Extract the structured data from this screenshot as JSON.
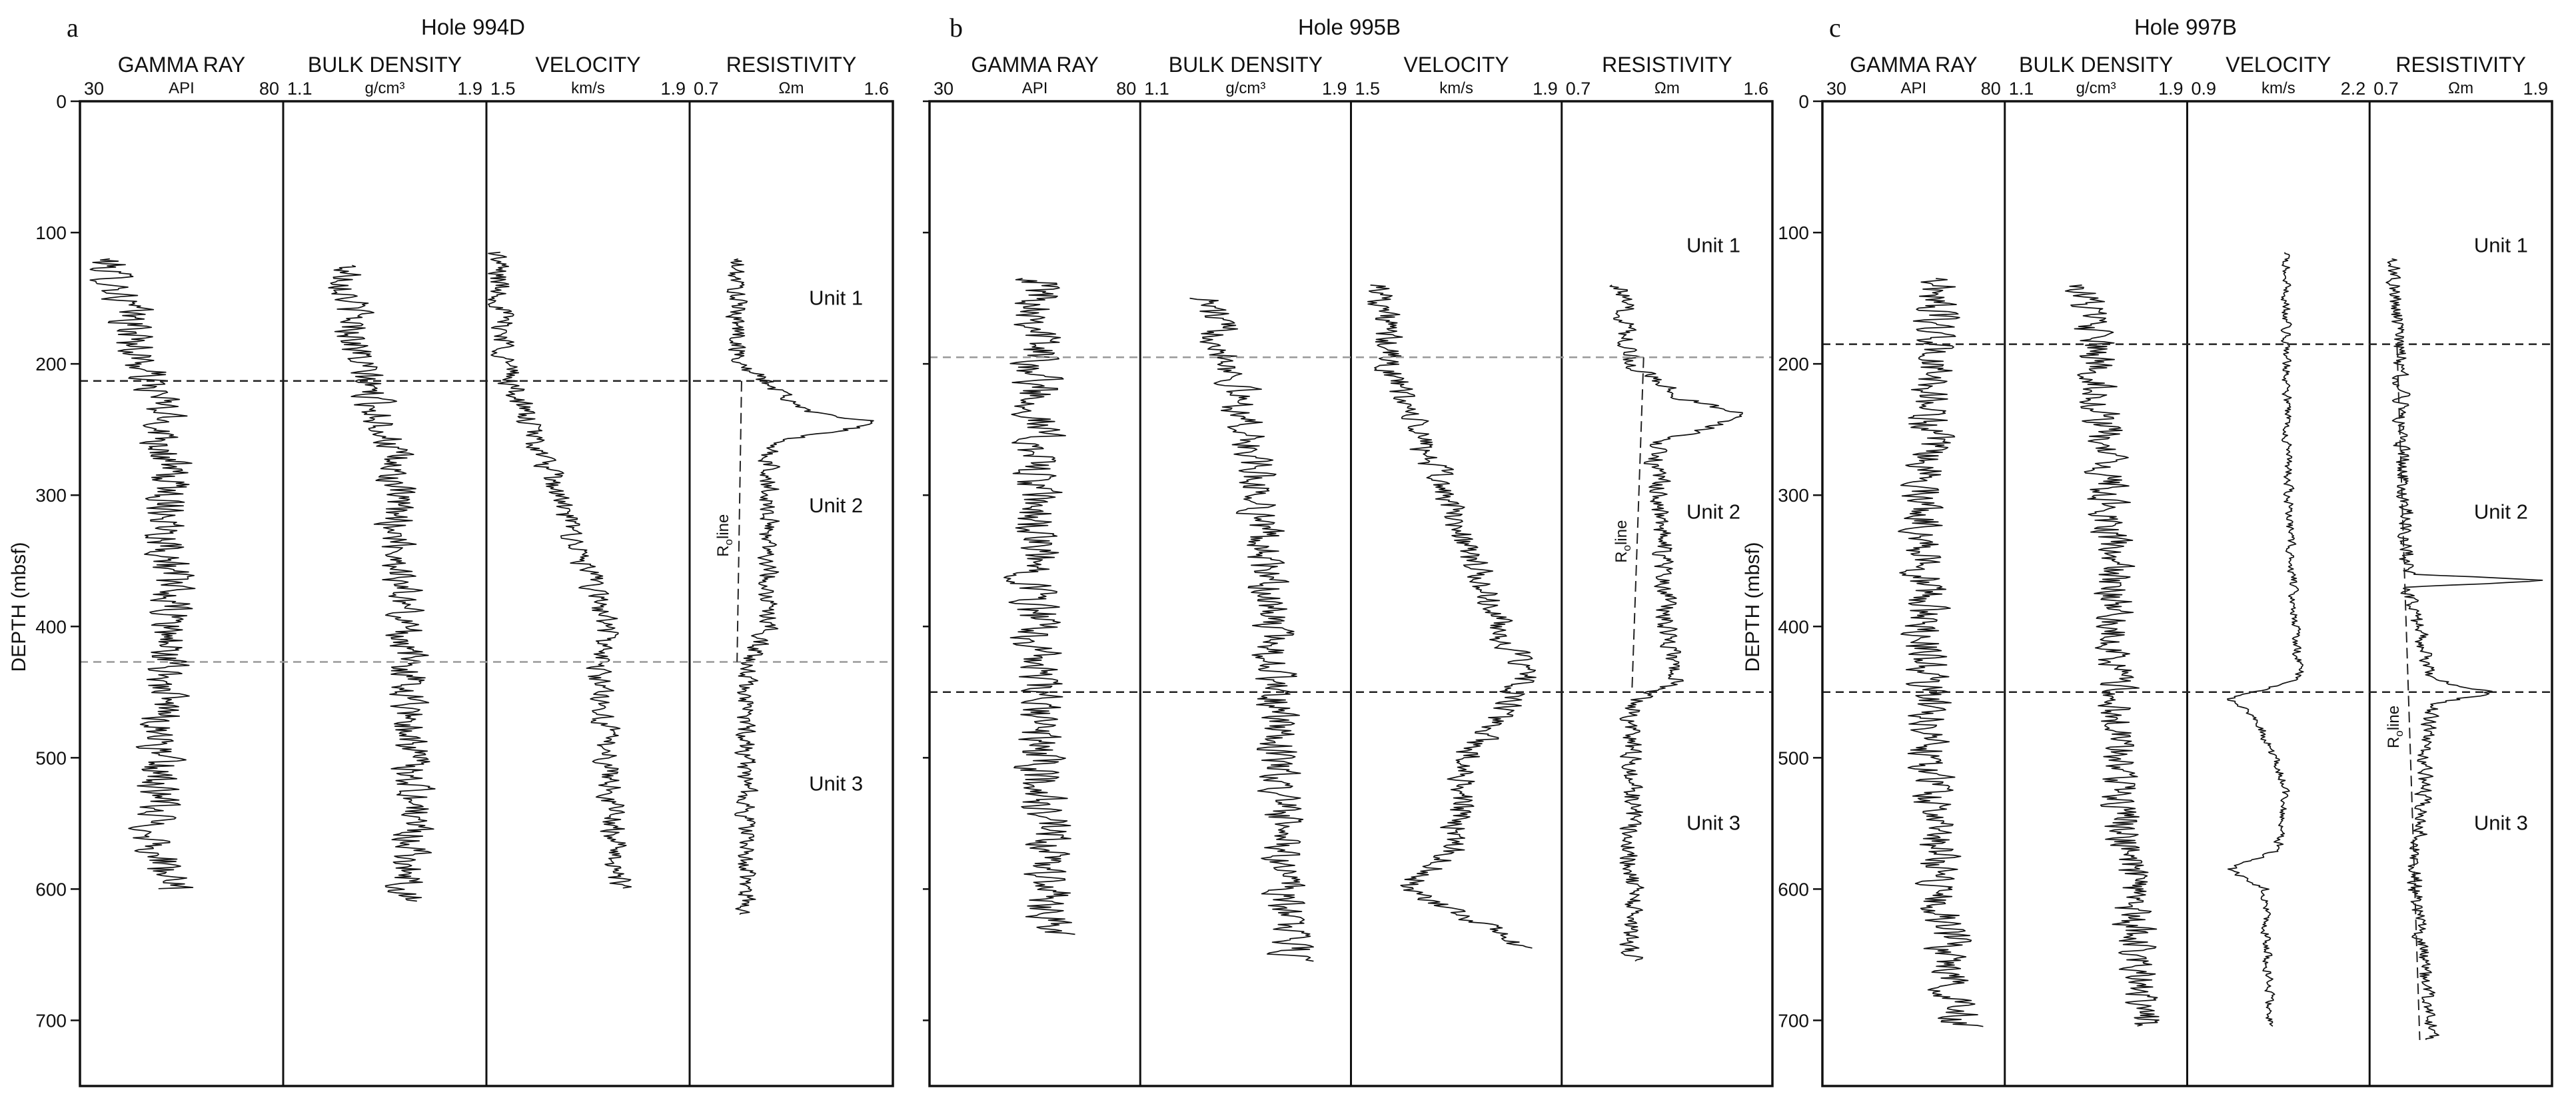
{
  "chart_data": [
    {
      "type": "line",
      "panel": "a",
      "title": "Hole 994D",
      "ylabel": "DEPTH (mbsf)",
      "ylim": [
        0,
        750
      ],
      "yticks": [
        "0",
        "100",
        "200",
        "300",
        "400",
        "500",
        "600",
        "700"
      ],
      "columns": [
        {
          "name": "GAMMA RAY",
          "unit": "API",
          "min": "30",
          "max": "80",
          "depth_range": [
            120,
            600
          ],
          "profile": [
            [
              120,
              36
            ],
            [
              160,
              42
            ],
            [
              200,
              45
            ],
            [
              230,
              50
            ],
            [
              300,
              52
            ],
            [
              400,
              52
            ],
            [
              480,
              50
            ],
            [
              560,
              48
            ],
            [
              600,
              52
            ]
          ],
          "noise": 0.3
        },
        {
          "name": "BULK DENSITY",
          "unit": "g/cm³",
          "min": "1.1",
          "max": "1.9",
          "depth_range": [
            125,
            610
          ],
          "profile": [
            [
              125,
              1.35
            ],
            [
              200,
              1.4
            ],
            [
              260,
              1.52
            ],
            [
              350,
              1.56
            ],
            [
              450,
              1.6
            ],
            [
              550,
              1.62
            ],
            [
              610,
              1.58
            ]
          ],
          "noise": 0.26
        },
        {
          "name": "VELOCITY",
          "unit": "km/s",
          "min": "1.5",
          "max": "1.9",
          "depth_range": [
            115,
            600
          ],
          "profile": [
            [
              115,
              1.52
            ],
            [
              200,
              1.54
            ],
            [
              215,
              1.55
            ],
            [
              300,
              1.64
            ],
            [
              400,
              1.74
            ],
            [
              430,
              1.72
            ],
            [
              500,
              1.74
            ],
            [
              600,
              1.76
            ]
          ],
          "noise": 0.17
        },
        {
          "name": "RESISTIVITY",
          "unit": "Ωm",
          "min": "0.7",
          "max": "1.6",
          "depth_range": [
            120,
            620
          ],
          "profile": [
            [
              120,
              0.9
            ],
            [
              200,
              0.92
            ],
            [
              215,
              1.05
            ],
            [
              235,
              1.2
            ],
            [
              245,
              1.55
            ],
            [
              260,
              1.05
            ],
            [
              400,
              1.05
            ],
            [
              430,
              0.95
            ],
            [
              620,
              0.95
            ]
          ],
          "noise": 0.14
        }
      ],
      "boundaries": [
        {
          "depth": 213,
          "color": "#222222"
        },
        {
          "depth": 427,
          "color": "#999999"
        }
      ],
      "units": [
        {
          "label": "Unit 1",
          "depth": 155
        },
        {
          "label": "Unit 2",
          "depth": 313
        },
        {
          "label": "Unit 3",
          "depth": 525
        }
      ],
      "ro_line": {
        "label": "R",
        "subscript": "o",
        "suffix": "line",
        "from": [
          213,
          0.93
        ],
        "to": [
          427,
          0.91
        ]
      }
    },
    {
      "type": "line",
      "panel": "b",
      "title": "Hole 995B",
      "ylabel": "",
      "ylim": [
        0,
        750
      ],
      "yticks": [],
      "columns": [
        {
          "name": "GAMMA RAY",
          "unit": "API",
          "min": "30",
          "max": "80",
          "depth_range": [
            135,
            635
          ],
          "profile": [
            [
              135,
              57
            ],
            [
              200,
              56
            ],
            [
              300,
              55
            ],
            [
              400,
              55
            ],
            [
              500,
              56
            ],
            [
              600,
              58
            ],
            [
              635,
              60
            ]
          ],
          "noise": 0.32
        },
        {
          "name": "BULK DENSITY",
          "unit": "g/cm³",
          "min": "1.1",
          "max": "1.9",
          "depth_range": [
            150,
            655
          ],
          "profile": [
            [
              150,
              1.35
            ],
            [
              200,
              1.45
            ],
            [
              300,
              1.55
            ],
            [
              400,
              1.6
            ],
            [
              500,
              1.62
            ],
            [
              600,
              1.65
            ],
            [
              655,
              1.68
            ]
          ],
          "noise": 0.26
        },
        {
          "name": "VELOCITY",
          "unit": "km/s",
          "min": "1.5",
          "max": "1.9",
          "depth_range": [
            140,
            645
          ],
          "profile": [
            [
              140,
              1.56
            ],
            [
              200,
              1.57
            ],
            [
              300,
              1.68
            ],
            [
              400,
              1.78
            ],
            [
              440,
              1.83
            ],
            [
              500,
              1.72
            ],
            [
              570,
              1.7
            ],
            [
              600,
              1.6
            ],
            [
              640,
              1.82
            ]
          ],
          "noise": 0.2
        },
        {
          "name": "RESISTIVITY",
          "unit": "Ωm",
          "min": "0.7",
          "max": "1.6",
          "depth_range": [
            140,
            655
          ],
          "profile": [
            [
              140,
              0.95
            ],
            [
              200,
              1.0
            ],
            [
              225,
              1.2
            ],
            [
              240,
              1.5
            ],
            [
              260,
              1.1
            ],
            [
              400,
              1.15
            ],
            [
              440,
              1.2
            ],
            [
              460,
              1.0
            ],
            [
              655,
              1.0
            ]
          ],
          "noise": 0.14
        }
      ],
      "boundaries": [
        {
          "depth": 195,
          "color": "#999999"
        },
        {
          "depth": 450,
          "color": "#222222"
        }
      ],
      "units": [
        {
          "label": "Unit 1",
          "depth": 115
        },
        {
          "label": "Unit 2",
          "depth": 318
        },
        {
          "label": "Unit 3",
          "depth": 555
        }
      ],
      "ro_line": {
        "label": "R",
        "subscript": "o",
        "suffix": "line",
        "from": [
          195,
          1.05
        ],
        "to": [
          450,
          1.0
        ]
      }
    },
    {
      "type": "line",
      "panel": "c",
      "title": "Hole 997B",
      "ylabel": "DEPTH (mbsf)",
      "ylim": [
        0,
        750
      ],
      "yticks": [
        "0",
        "100",
        "200",
        "300",
        "400",
        "500",
        "600",
        "700"
      ],
      "columns": [
        {
          "name": "GAMMA RAY",
          "unit": "API",
          "min": "30",
          "max": "80",
          "depth_range": [
            135,
            705
          ],
          "profile": [
            [
              135,
              62
            ],
            [
              200,
              60
            ],
            [
              300,
              58
            ],
            [
              400,
              58
            ],
            [
              500,
              60
            ],
            [
              600,
              62
            ],
            [
              705,
              68
            ]
          ],
          "noise": 0.32
        },
        {
          "name": "BULK DENSITY",
          "unit": "g/cm³",
          "min": "1.1",
          "max": "1.9",
          "depth_range": [
            140,
            705
          ],
          "profile": [
            [
              140,
              1.45
            ],
            [
              200,
              1.5
            ],
            [
              300,
              1.55
            ],
            [
              400,
              1.58
            ],
            [
              500,
              1.6
            ],
            [
              600,
              1.65
            ],
            [
              705,
              1.72
            ]
          ],
          "noise": 0.3
        },
        {
          "name": "VELOCITY",
          "unit": "km/s",
          "min": "0.9",
          "max": "2.2",
          "depth_range": [
            115,
            705
          ],
          "profile": [
            [
              115,
              1.6
            ],
            [
              300,
              1.62
            ],
            [
              360,
              1.65
            ],
            [
              440,
              1.7
            ],
            [
              455,
              1.2
            ],
            [
              470,
              1.4
            ],
            [
              520,
              1.6
            ],
            [
              570,
              1.55
            ],
            [
              585,
              1.2
            ],
            [
              600,
              1.45
            ],
            [
              705,
              1.5
            ]
          ],
          "noise": 0.07
        },
        {
          "name": "RESISTIVITY",
          "unit": "Ωm",
          "min": "0.7",
          "max": "1.9",
          "depth_range": [
            120,
            715
          ],
          "profile": [
            [
              120,
              0.85
            ],
            [
              200,
              0.9
            ],
            [
              360,
              0.95
            ],
            [
              365,
              1.9
            ],
            [
              370,
              0.95
            ],
            [
              440,
              1.1
            ],
            [
              450,
              1.5
            ],
            [
              460,
              1.1
            ],
            [
              600,
              1.0
            ],
            [
              715,
              1.1
            ]
          ],
          "noise": 0.12
        }
      ],
      "boundaries": [
        {
          "depth": 185,
          "color": "#222222"
        },
        {
          "depth": 450,
          "color": "#222222"
        }
      ],
      "units": [
        {
          "label": "Unit 1",
          "depth": 115
        },
        {
          "label": "Unit 2",
          "depth": 318
        },
        {
          "label": "Unit 3",
          "depth": 555
        }
      ],
      "ro_line": {
        "label": "R",
        "subscript": "o",
        "suffix": "line",
        "from": [
          185,
          0.88
        ],
        "to": [
          715,
          1.03
        ]
      }
    }
  ]
}
